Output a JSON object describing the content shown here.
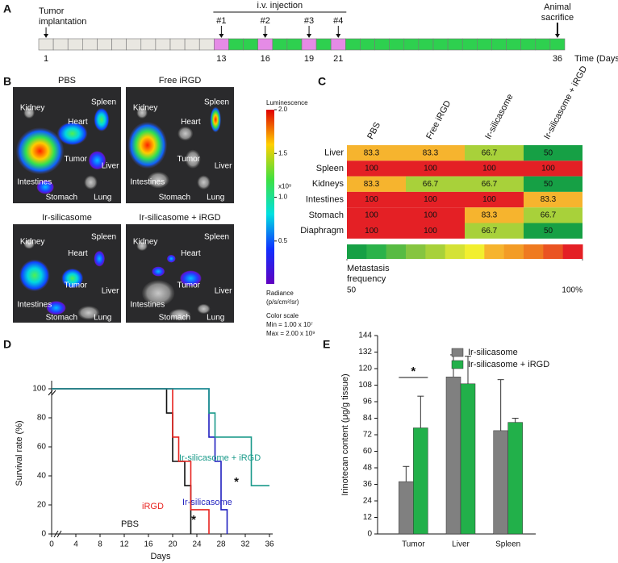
{
  "panel_labels": [
    "A",
    "B",
    "C",
    "D",
    "E"
  ],
  "timeline": {
    "start_label": [
      "Tumor",
      "implantation"
    ],
    "injection_label": "i.v. injection",
    "injection_labels": [
      "#1",
      "#2",
      "#3",
      "#4"
    ],
    "end_label": [
      "Animal",
      "sacrifice"
    ],
    "ticks": [
      1,
      13,
      16,
      19,
      21,
      36
    ],
    "axis_label": "Time (Days)",
    "colors": {
      "pre": "#e9e7e1",
      "injection": "#e58be6",
      "post": "#2ed04f"
    }
  },
  "imaging": {
    "panels": [
      {
        "title": "PBS",
        "labels": [
          "Kidney",
          "Heart",
          "Spleen",
          "Liver",
          "Tumor",
          "Intestines",
          "Stomach",
          "Lung"
        ]
      },
      {
        "title": "Free iRGD",
        "labels": [
          "Kidney",
          "Heart",
          "Spleen",
          "Liver",
          "Tumor",
          "Intestines",
          "Stomach",
          "Lung"
        ]
      },
      {
        "title": "Ir-silicasome",
        "labels": [
          "Kidney",
          "Heart",
          "Spleen",
          "Liver",
          "Tumor",
          "Intestines",
          "Stomach",
          "Lung"
        ]
      },
      {
        "title": "Ir-silicasome + iRGD",
        "labels": [
          "Kidney",
          "Heart",
          "Spleen",
          "Liver",
          "Tumor",
          "Intestines",
          "Stomach",
          "Lung"
        ]
      }
    ],
    "colorbar": {
      "title": "Luminescence",
      "unit": "x10⁹",
      "range": [
        0.01,
        2
      ],
      "ticks": [
        {
          "value": 2,
          "label": "2.0"
        },
        {
          "value": 1.5,
          "label": "1.5"
        },
        {
          "value": 1,
          "label": "1.0"
        },
        {
          "value": 0.5,
          "label": "0.5"
        }
      ],
      "notes": [
        "Radiance",
        "(p/s/cm²/sr)",
        "Color scale",
        "Min = 1.00 x 10⁷",
        "Max = 2.00 x 10⁹"
      ]
    }
  },
  "chart_data": [
    {
      "type": "heatmap",
      "columns": [
        "PBS",
        "Free iRGD",
        "Ir-silicasome",
        "Ir-silicasome + iRGD"
      ],
      "rows": [
        "Liver",
        "Spleen",
        "Kidneys",
        "Intestines",
        "Stomach",
        "Diaphragm"
      ],
      "values": [
        [
          83.3,
          83.3,
          66.7,
          50
        ],
        [
          100,
          100,
          100,
          100
        ],
        [
          83.3,
          66.7,
          66.7,
          50
        ],
        [
          100,
          100,
          100,
          83.3
        ],
        [
          100,
          100,
          83.3,
          66.7
        ],
        [
          100,
          100,
          66.7,
          50
        ]
      ],
      "colorscale": {
        "title": [
          "Metastasis",
          "frequency"
        ],
        "range": [
          50,
          100
        ],
        "colors": [
          "#16a045",
          "#2bb24a",
          "#58bb43",
          "#86c540",
          "#a8d13a",
          "#d4e236",
          "#f2ef2f",
          "#f6b42e",
          "#f39c26",
          "#ef7a20",
          "#ea5322",
          "#e42025"
        ],
        "ticks": [
          50,
          {
            "value": 100,
            "label": "100%"
          }
        ]
      }
    },
    {
      "type": "line",
      "step": true,
      "xlabel": "Days",
      "ylabel": "Survival rate (%)",
      "xlim": [
        0,
        36
      ],
      "ylim": [
        0,
        100
      ],
      "xticks": [
        0,
        4,
        8,
        12,
        16,
        20,
        24,
        28,
        32,
        36
      ],
      "yticks": [
        0,
        20,
        40,
        60,
        80,
        100
      ],
      "series": [
        {
          "name": "PBS",
          "color": "#111111",
          "x": [
            0,
            19,
            20,
            22,
            23
          ],
          "values": [
            100,
            83.3,
            50,
            33.3,
            0
          ]
        },
        {
          "name": "iRGD",
          "color": "#e8231f",
          "x": [
            0,
            20,
            21,
            23,
            26
          ],
          "values": [
            100,
            66.7,
            50,
            16.7,
            0
          ]
        },
        {
          "name": "Ir-silicasome",
          "color": "#1f1fbf",
          "x": [
            0,
            26,
            27,
            28,
            29
          ],
          "values": [
            100,
            66.7,
            50,
            16.7,
            0
          ]
        },
        {
          "name": "Ir-silicasome + iRGD",
          "color": "#1a9a8a",
          "x": [
            0,
            26,
            27,
            33,
            36
          ],
          "values": [
            100,
            83.3,
            66.7,
            33.3,
            33.3
          ]
        }
      ],
      "annotations": [
        "*",
        "*"
      ]
    },
    {
      "type": "bar",
      "ylabel": "Irinotecan content (μg/g tissue)",
      "categories": [
        "Tumor",
        "Liver",
        "Spleen"
      ],
      "ylim": [
        0,
        144
      ],
      "yticks": [
        0,
        12,
        24,
        36,
        48,
        60,
        72,
        84,
        96,
        108,
        120,
        132,
        144
      ],
      "legend": "top-right",
      "series": [
        {
          "name": "Ir-silicasome",
          "color": "#808080",
          "values": [
            38,
            114,
            75
          ],
          "errors": [
            11,
            16,
            37
          ]
        },
        {
          "name": "Ir-silicasome + iRGD",
          "color": "#22b04a",
          "values": [
            77,
            109,
            81
          ],
          "errors": [
            23,
            20,
            3
          ]
        }
      ],
      "annotations": [
        "*"
      ]
    }
  ]
}
